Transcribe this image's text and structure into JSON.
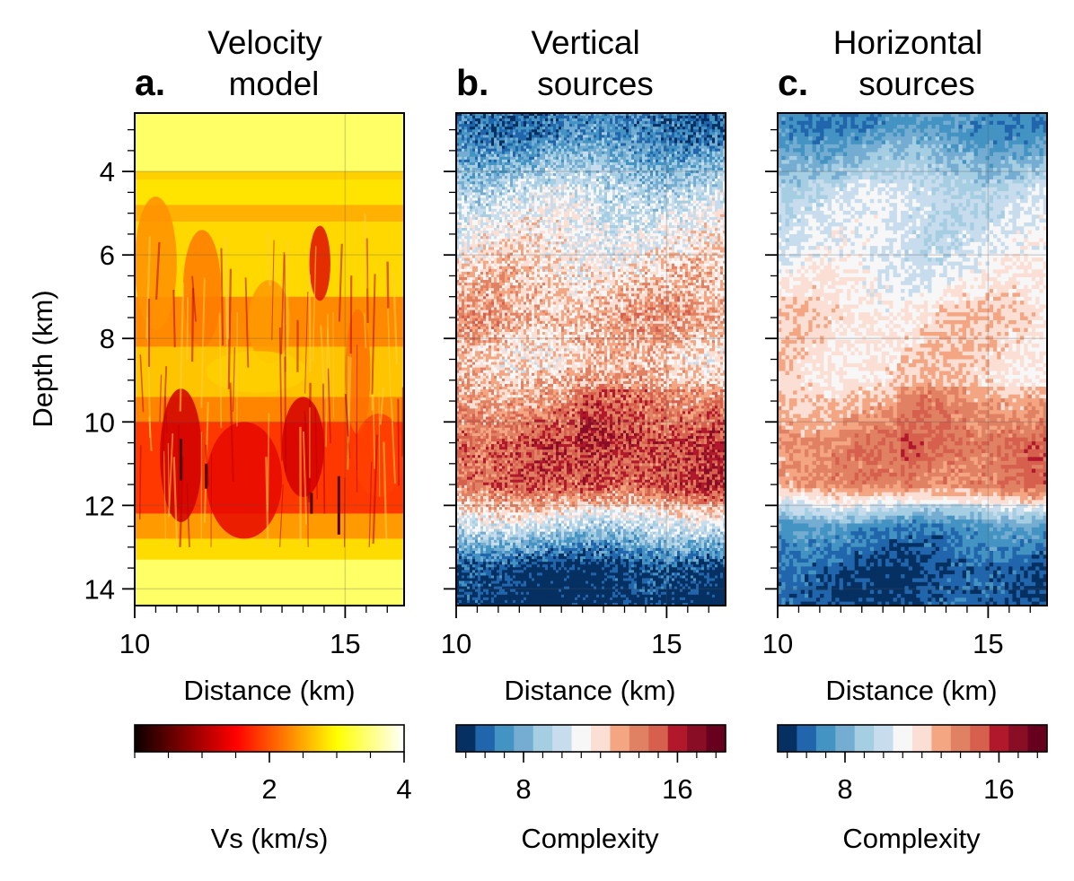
{
  "chart_data": [
    {
      "panel_label": "a.",
      "title_lines": [
        "Velocity",
        "model"
      ],
      "type": "heatmap",
      "colormap": "hot",
      "xlabel": "Distance (km)",
      "ylabel": "Depth (km)",
      "xlim": [
        10,
        16.4
      ],
      "ylim": [
        14.4,
        2.6
      ],
      "x_ticks": [
        "10",
        "15"
      ],
      "y_ticks": [
        "4",
        "6",
        "8",
        "10",
        "12",
        "14"
      ],
      "grid": true,
      "colorbar": {
        "label": "Vs (km/s)",
        "range": [
          0,
          4
        ],
        "ticks": [
          "2",
          "4"
        ]
      }
    },
    {
      "panel_label": "b.",
      "title_lines": [
        "Vertical",
        "sources"
      ],
      "type": "heatmap",
      "colormap": "RdBu_r (14 discrete levels)",
      "xlabel": "Distance (km)",
      "xlim": [
        10,
        16.4
      ],
      "ylim": [
        14.4,
        2.6
      ],
      "x_ticks": [
        "10",
        "15"
      ],
      "grid": true,
      "depth_profile": [
        {
          "depth": 3,
          "complexity": 6.5
        },
        {
          "depth": 4.5,
          "complexity": 10
        },
        {
          "depth": 6,
          "complexity": 11.5
        },
        {
          "depth": 7.5,
          "complexity": 13
        },
        {
          "depth": 8.5,
          "complexity": 12
        },
        {
          "depth": 9.5,
          "complexity": 13.5
        },
        {
          "depth": 10.5,
          "complexity": 15
        },
        {
          "depth": 11.5,
          "complexity": 14.5
        },
        {
          "depth": 12.5,
          "complexity": 10
        },
        {
          "depth": 13.5,
          "complexity": 5
        },
        {
          "depth": 14.4,
          "complexity": 4.5
        }
      ],
      "colorbar": {
        "label": "Complexity",
        "range": [
          4.5,
          18.5
        ],
        "ticks": [
          "8",
          "16"
        ]
      }
    },
    {
      "panel_label": "c.",
      "title_lines": [
        "Horizontal",
        "sources"
      ],
      "type": "heatmap",
      "colormap": "RdBu_r (14 discrete levels)",
      "xlabel": "Distance (km)",
      "xlim": [
        10,
        16.4
      ],
      "ylim": [
        14.4,
        2.6
      ],
      "x_ticks": [
        "10",
        "15"
      ],
      "grid": true,
      "depth_profile": [
        {
          "depth": 3,
          "complexity": 7
        },
        {
          "depth": 4.5,
          "complexity": 10
        },
        {
          "depth": 6,
          "complexity": 10.5
        },
        {
          "depth": 7.5,
          "complexity": 12
        },
        {
          "depth": 9,
          "complexity": 12
        },
        {
          "depth": 10.5,
          "complexity": 14
        },
        {
          "depth": 11.5,
          "complexity": 13.5
        },
        {
          "depth": 12.5,
          "complexity": 7
        },
        {
          "depth": 13.5,
          "complexity": 5.5
        },
        {
          "depth": 14.4,
          "complexity": 5.5
        }
      ],
      "colorbar": {
        "label": "Complexity",
        "range": [
          4.5,
          18.5
        ],
        "ticks": [
          "8",
          "16"
        ]
      }
    }
  ]
}
